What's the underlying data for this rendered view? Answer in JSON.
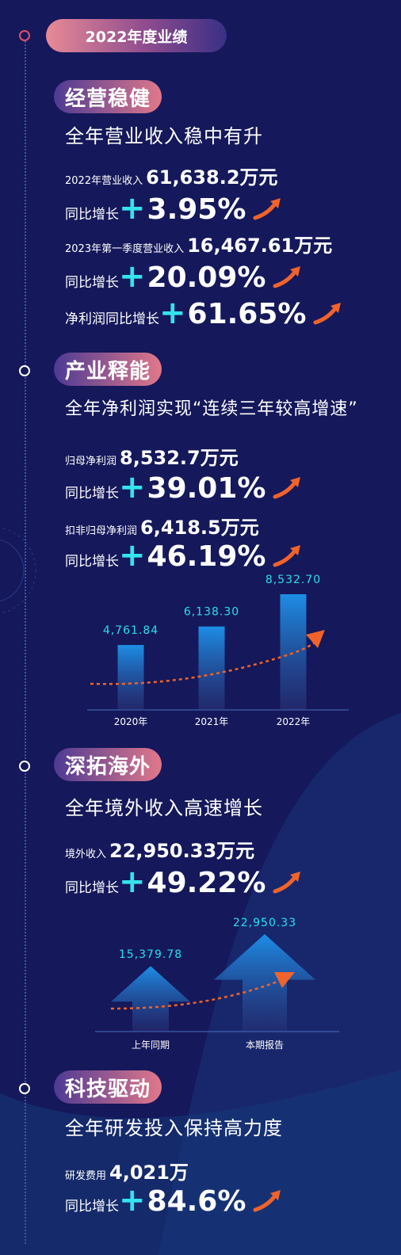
{
  "header": {
    "title": "2022年度业绩"
  },
  "sections": [
    {
      "title": "经营稳健",
      "subtitle": "全年营业收入稳中有升"
    },
    {
      "title": "产业释能",
      "subtitle": "全年净利润实现“连续三年较高增速”"
    },
    {
      "title": "深拓海外",
      "subtitle": "全年境外收入高速增长"
    },
    {
      "title": "科技驱动",
      "subtitle": "全年研发投入保持高力度"
    }
  ],
  "s1": {
    "rev_label": "2022年营业收入",
    "rev_value": "61,638.2万元",
    "yoy_label": "同比增长",
    "rev_growth": "3.95%",
    "q1_label": "2023年第一季度营业收入",
    "q1_value": "16,467.61万元",
    "q1_growth": "20.09%",
    "np_label": "净利润同比增长",
    "np_growth": "61.65%"
  },
  "s2": {
    "np_label": "归母净利润",
    "np_value": "8,532.7万元",
    "np_growth": "39.01%",
    "adj_label": "扣非归母净利润",
    "adj_value": "6,418.5万元",
    "adj_growth": "46.19%",
    "yoy_label": "同比增长"
  },
  "s3": {
    "rev_label": "境外收入",
    "rev_value": "22,950.33万元",
    "growth": "49.22%",
    "yoy_label": "同比增长"
  },
  "s4": {
    "rd_label": "研发费用",
    "rd_value": "4,021万",
    "growth": "84.6%",
    "yoy_label": "同比增长"
  },
  "plus_sign": "+",
  "chart_data": [
    {
      "type": "bar",
      "categories": [
        "2020年",
        "2021年",
        "2022年"
      ],
      "values": [
        4761.84,
        6138.3,
        8532.7
      ],
      "value_labels": [
        "4,761.84",
        "6,138.30",
        "8,532.70"
      ]
    },
    {
      "type": "bar",
      "categories": [
        "上年同期",
        "本期报告"
      ],
      "values": [
        15379.78,
        22950.33
      ],
      "value_labels": [
        "15,379.78",
        "22,950.33"
      ]
    }
  ],
  "colors": {
    "background": "#15185a",
    "accent_cyan": "#34e3ee",
    "arrow_orange": "#f0632a"
  }
}
